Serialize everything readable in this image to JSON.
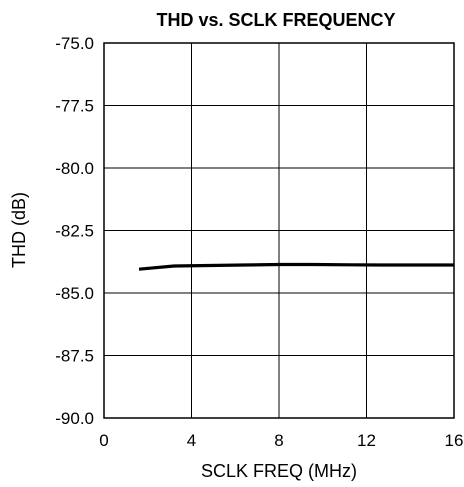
{
  "chart_data": {
    "type": "line",
    "title": "THD vs. SCLK FREQUENCY",
    "xlabel": "SCLK FREQ (MHz)",
    "ylabel": "THD (dB)",
    "xlim": [
      0,
      16
    ],
    "ylim": [
      -90.0,
      -75.0
    ],
    "x_ticks": [
      "0",
      "4",
      "8",
      "12",
      "16"
    ],
    "y_ticks": [
      "-75.0",
      "-77.5",
      "-80.0",
      "-82.5",
      "-85.0",
      "-87.5",
      "-90.0"
    ],
    "grid": true,
    "line_color": "#000000",
    "series": [
      {
        "x": [
          1.6,
          3.2,
          4.8,
          6.4,
          8.0,
          9.6,
          11.2,
          12.8,
          14.4,
          16.0
        ],
        "y": [
          -84.05,
          -83.92,
          -83.9,
          -83.88,
          -83.86,
          -83.86,
          -83.87,
          -83.88,
          -83.88,
          -83.88
        ]
      }
    ]
  }
}
